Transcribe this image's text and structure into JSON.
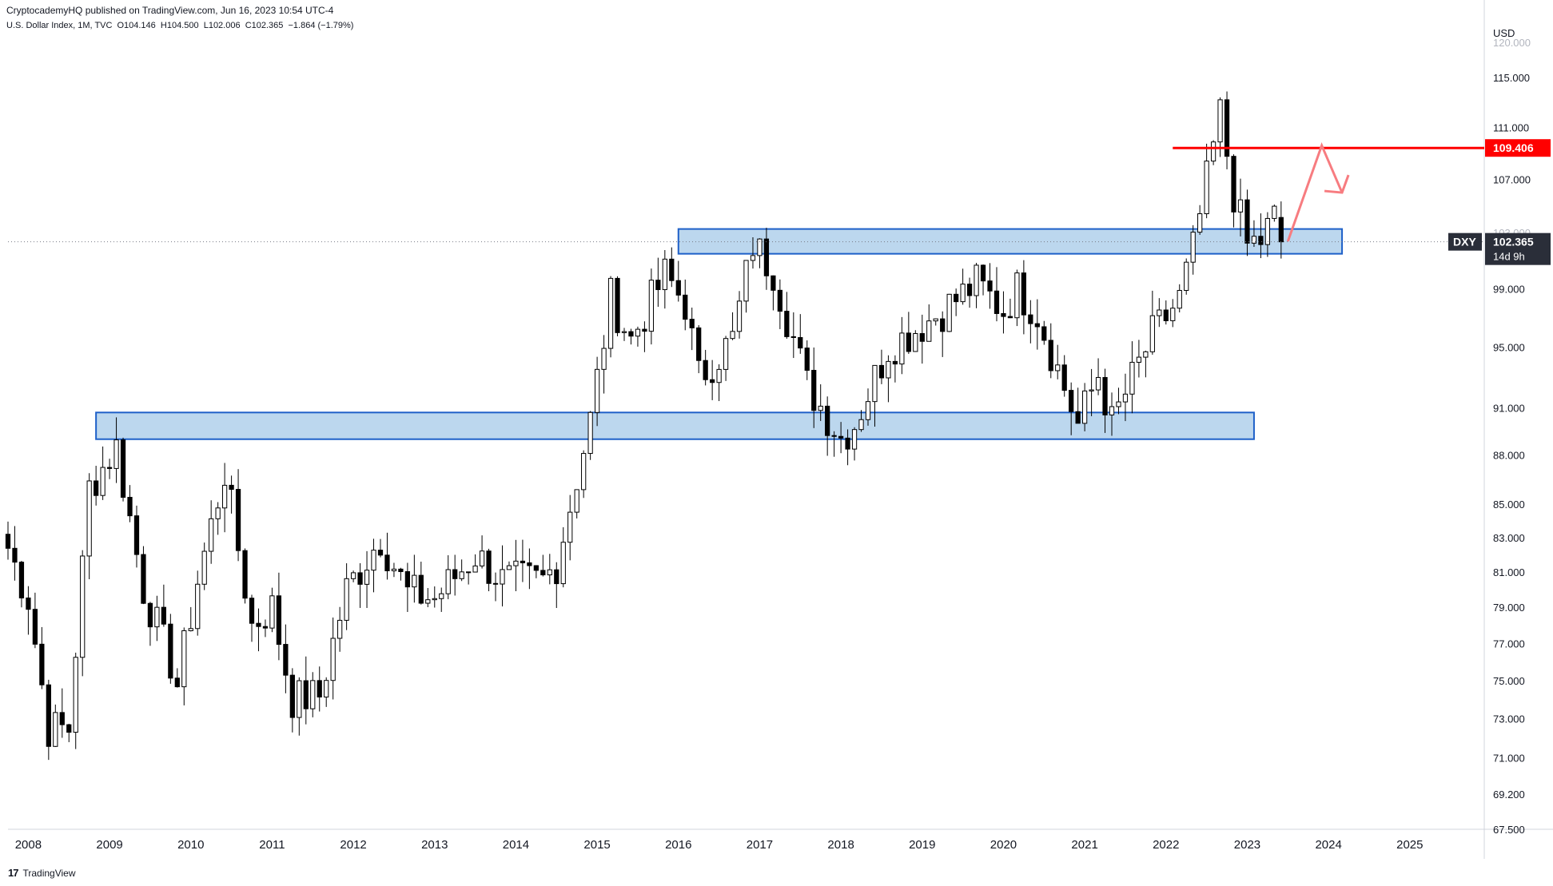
{
  "header": {
    "published": "CryptocademyHQ published on TradingView.com, Jun 16, 2023 10:54 UTC-4",
    "symbol_info": "U.S. Dollar Index, 1M, TVC",
    "ohlc": "O104.146  H104.500  L102.006  C102.365  −1.864 (−1.79%)"
  },
  "footer": {
    "brand": "TradingView"
  },
  "price_axis": {
    "currency": "USD",
    "ticks": [
      "115.000",
      "111.000",
      "107.000",
      "103.000",
      "99.000",
      "95.000",
      "91.000",
      "88.000",
      "85.000",
      "83.000",
      "81.000",
      "79.000",
      "77.000",
      "75.000",
      "73.000",
      "71.000",
      "69.200",
      "67.500"
    ],
    "top_partial": "120.000"
  },
  "time_axis": {
    "years": [
      "2008",
      "2009",
      "2010",
      "2011",
      "2012",
      "2013",
      "2014",
      "2015",
      "2016",
      "2017",
      "2018",
      "2019",
      "2020",
      "2021",
      "2022",
      "2023",
      "2024",
      "2025"
    ]
  },
  "labels": {
    "resistance": "109.406",
    "symbol": "DXY",
    "last_price": "102.365",
    "countdown": "14d 9h"
  },
  "colors": {
    "up": "#ffffff",
    "down": "#000000",
    "wick": "#000000",
    "zone_fill": "#bcd7ee",
    "zone_stroke": "#1e60c8",
    "resistance": "#ff0000",
    "projection": "#f77c80",
    "price_label_bg": "#2a2e39"
  },
  "chart_data": {
    "type": "candlestick",
    "title": "U.S. Dollar Index, 1M, TVC",
    "timeframe": "1M",
    "ylim": [
      67.5,
      120
    ],
    "scale": "log",
    "x_range": [
      "2007-10",
      "2025-12"
    ],
    "last_price": 102.365,
    "resistance_line": {
      "price": 109.406,
      "from": "2022-02",
      "to": "2025-06"
    },
    "zones": [
      {
        "from": "2008-11",
        "to": "2023-02",
        "low": 89.0,
        "high": 90.7
      },
      {
        "from": "2016-01",
        "to": "2024-03",
        "low": 101.5,
        "high": 103.3
      }
    ],
    "projection": [
      {
        "t": "2023-07",
        "p": 102.4
      },
      {
        "t": "2023-12",
        "p": 109.6
      },
      {
        "t": "2024-03",
        "p": 106.0
      }
    ],
    "monthly_close_path": [
      [
        "2007-10",
        82.4
      ],
      [
        "2008-01",
        79.5
      ],
      [
        "2008-04",
        72.5
      ],
      [
        "2008-07",
        72.5
      ],
      [
        "2008-10",
        86.0
      ],
      [
        "2009-02",
        88.5
      ],
      [
        "2009-06",
        80.0
      ],
      [
        "2009-10",
        76.0
      ],
      [
        "2009-11",
        74.8
      ],
      [
        "2010-02",
        80.5
      ],
      [
        "2010-06",
        87.0
      ],
      [
        "2010-10",
        78.0
      ],
      [
        "2011-01",
        79.0
      ],
      [
        "2011-04",
        74.0
      ],
      [
        "2011-08",
        74.2
      ],
      [
        "2011-12",
        80.0
      ],
      [
        "2012-05",
        83.0
      ],
      [
        "2012-09",
        79.8
      ],
      [
        "2013-01",
        79.5
      ],
      [
        "2013-07",
        82.0
      ],
      [
        "2013-11",
        80.5
      ],
      [
        "2014-05",
        80.5
      ],
      [
        "2014-07",
        81.5
      ],
      [
        "2014-12",
        90.2
      ],
      [
        "2015-03",
        98.4
      ],
      [
        "2015-06",
        95.5
      ],
      [
        "2015-11",
        100.0
      ],
      [
        "2016-02",
        98.0
      ],
      [
        "2016-04",
        93.0
      ],
      [
        "2016-09",
        95.5
      ],
      [
        "2016-12",
        102.2
      ],
      [
        "2017-03",
        100.3
      ],
      [
        "2017-08",
        92.5
      ],
      [
        "2018-01",
        89.1
      ],
      [
        "2018-03",
        90.0
      ],
      [
        "2018-08",
        95.0
      ],
      [
        "2018-12",
        96.2
      ],
      [
        "2019-04",
        97.5
      ],
      [
        "2019-09",
        99.4
      ],
      [
        "2020-01",
        97.5
      ],
      [
        "2020-03",
        99.0
      ],
      [
        "2020-06",
        97.3
      ],
      [
        "2020-12",
        89.9
      ],
      [
        "2021-03",
        93.2
      ],
      [
        "2021-05",
        90.0
      ],
      [
        "2021-11",
        95.8
      ],
      [
        "2022-03",
        98.3
      ],
      [
        "2022-05",
        101.8
      ],
      [
        "2022-09",
        112.1
      ],
      [
        "2022-11",
        105.9
      ],
      [
        "2023-01",
        102.1
      ],
      [
        "2023-03",
        102.5
      ],
      [
        "2023-05",
        104.1
      ],
      [
        "2023-06",
        102.4
      ]
    ]
  }
}
